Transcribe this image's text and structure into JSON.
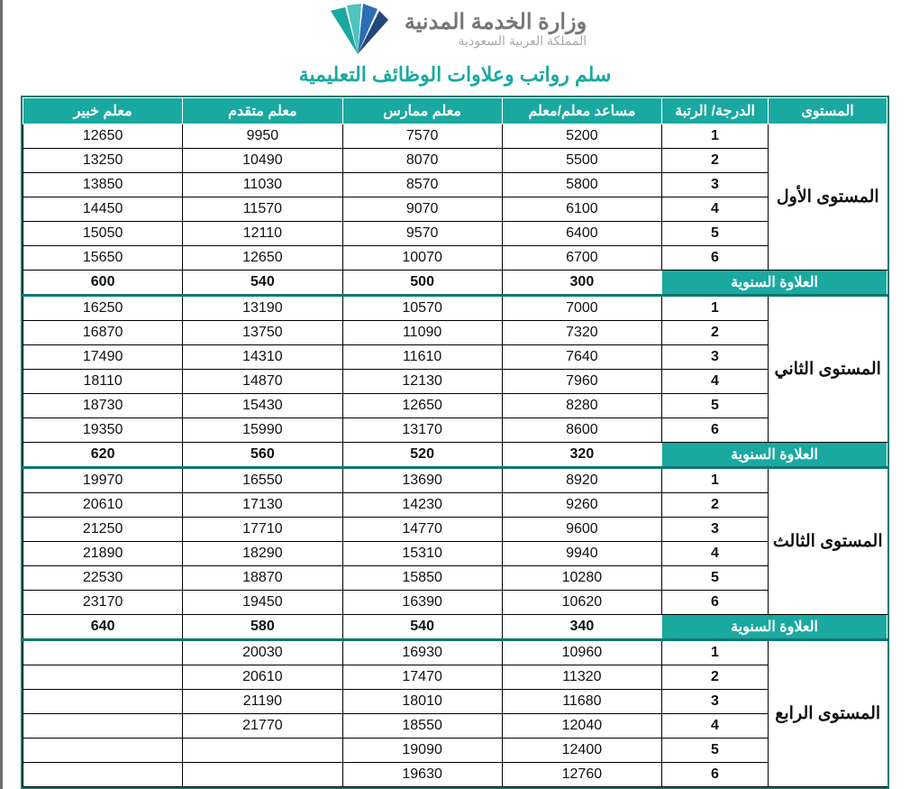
{
  "brand": {
    "name": "وزارة الخدمة المدنية",
    "sub": "المملكة العربية السعودية"
  },
  "title": "سلم رواتب وعلاوات الوظائف التعليمية",
  "columns": [
    "المستوى",
    "الدرجة/ الرتبة",
    "مساعد معلم/معلم",
    "معلم ممارس",
    "معلم متقدم",
    "معلم خبير"
  ],
  "allowance_label": "العلاوة السنوية",
  "levels": [
    {
      "name": "المستوى الأول",
      "rows": [
        {
          "g": "1",
          "v": [
            "5200",
            "7570",
            "9950",
            "12650"
          ]
        },
        {
          "g": "2",
          "v": [
            "5500",
            "8070",
            "10490",
            "13250"
          ]
        },
        {
          "g": "3",
          "v": [
            "5800",
            "8570",
            "11030",
            "13850"
          ]
        },
        {
          "g": "4",
          "v": [
            "6100",
            "9070",
            "11570",
            "14450"
          ]
        },
        {
          "g": "5",
          "v": [
            "6400",
            "9570",
            "12110",
            "15050"
          ]
        },
        {
          "g": "6",
          "v": [
            "6700",
            "10070",
            "12650",
            "15650"
          ]
        }
      ],
      "allow": [
        "300",
        "500",
        "540",
        "600"
      ]
    },
    {
      "name": "المستوى الثاني",
      "rows": [
        {
          "g": "1",
          "v": [
            "7000",
            "10570",
            "13190",
            "16250"
          ]
        },
        {
          "g": "2",
          "v": [
            "7320",
            "11090",
            "13750",
            "16870"
          ]
        },
        {
          "g": "3",
          "v": [
            "7640",
            "11610",
            "14310",
            "17490"
          ]
        },
        {
          "g": "4",
          "v": [
            "7960",
            "12130",
            "14870",
            "18110"
          ]
        },
        {
          "g": "5",
          "v": [
            "8280",
            "12650",
            "15430",
            "18730"
          ]
        },
        {
          "g": "6",
          "v": [
            "8600",
            "13170",
            "15990",
            "19350"
          ]
        }
      ],
      "allow": [
        "320",
        "520",
        "560",
        "620"
      ]
    },
    {
      "name": "المستوى الثالث",
      "rows": [
        {
          "g": "1",
          "v": [
            "8920",
            "13690",
            "16550",
            "19970"
          ]
        },
        {
          "g": "2",
          "v": [
            "9260",
            "14230",
            "17130",
            "20610"
          ]
        },
        {
          "g": "3",
          "v": [
            "9600",
            "14770",
            "17710",
            "21250"
          ]
        },
        {
          "g": "4",
          "v": [
            "9940",
            "15310",
            "18290",
            "21890"
          ]
        },
        {
          "g": "5",
          "v": [
            "10280",
            "15850",
            "18870",
            "22530"
          ]
        },
        {
          "g": "6",
          "v": [
            "10620",
            "16390",
            "19450",
            "23170"
          ]
        }
      ],
      "allow": [
        "340",
        "540",
        "580",
        "640"
      ]
    },
    {
      "name": "المستوى الرابع",
      "rows": [
        {
          "g": "1",
          "v": [
            "10960",
            "16930",
            "20030",
            ""
          ]
        },
        {
          "g": "2",
          "v": [
            "11320",
            "17470",
            "20610",
            ""
          ]
        },
        {
          "g": "3",
          "v": [
            "11680",
            "18010",
            "21190",
            ""
          ]
        },
        {
          "g": "4",
          "v": [
            "12040",
            "18550",
            "21770",
            ""
          ]
        },
        {
          "g": "5",
          "v": [
            "12400",
            "19090",
            "",
            ""
          ]
        },
        {
          "g": "6",
          "v": [
            "12760",
            "19630",
            "",
            ""
          ]
        }
      ]
    }
  ],
  "colors": {
    "teal": "#1aa9a0",
    "outer": "#0b7770",
    "title": "#1aa9a0"
  }
}
